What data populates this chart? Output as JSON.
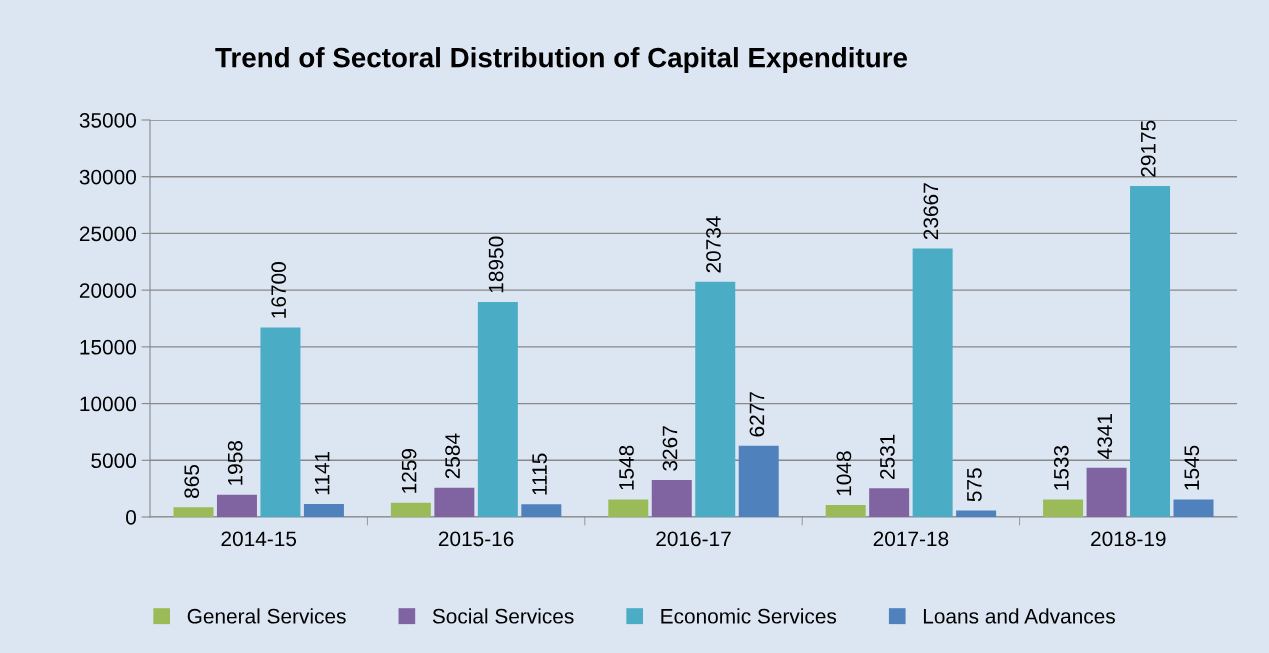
{
  "chart_data": {
    "type": "bar",
    "title": "Trend of Sectoral Distribution of Capital Expenditure",
    "categories": [
      "2014-15",
      "2015-16",
      "2016-17",
      "2017-18",
      "2018-19"
    ],
    "series": [
      {
        "name": "General Services",
        "color": "#9bbb59",
        "values": [
          865,
          1259,
          1548,
          1048,
          1533
        ]
      },
      {
        "name": "Social Services",
        "color": "#8064a2",
        "values": [
          1958,
          2584,
          3267,
          2531,
          4341
        ]
      },
      {
        "name": "Economic Services",
        "color": "#4bacc6",
        "values": [
          16700,
          18950,
          20734,
          23667,
          29175
        ]
      },
      {
        "name": "Loans and Advances",
        "color": "#4f81bd",
        "values": [
          1141,
          1115,
          6277,
          575,
          1545
        ]
      }
    ],
    "ylim": [
      0,
      35000
    ],
    "yticks": [
      0,
      5000,
      10000,
      15000,
      20000,
      25000,
      30000,
      35000
    ],
    "grid": "y",
    "legend": "bottom",
    "data_labels": true
  }
}
